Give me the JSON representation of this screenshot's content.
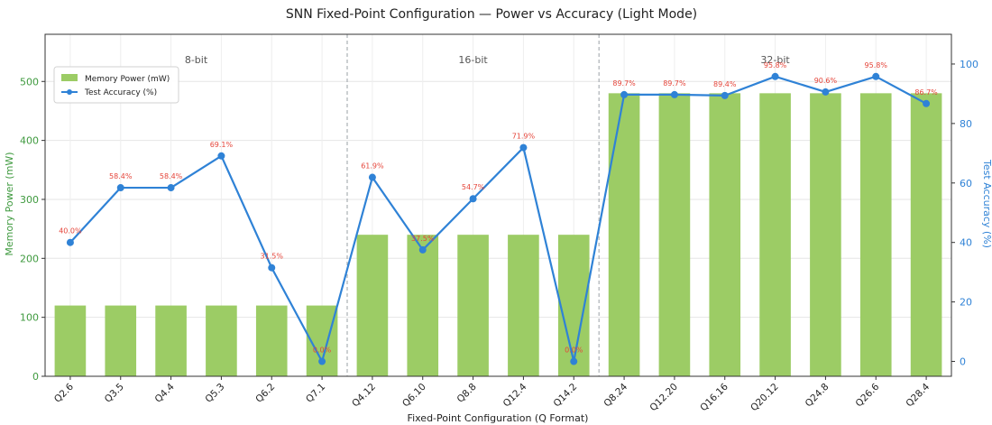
{
  "chart_data": {
    "type": "bar+line",
    "title": "SNN Fixed-Point Configuration — Power vs Accuracy (Light Mode)",
    "xlabel": "Fixed-Point Configuration (Q Format)",
    "ylabel_left": "Memory Power (mW)",
    "ylabel_right": "Test Accuracy (%)",
    "ylim_left": [
      0,
      580
    ],
    "ylim_right": [
      -5,
      110
    ],
    "yticks_left": [
      0,
      100,
      200,
      300,
      400,
      500
    ],
    "yticks_right": [
      0,
      20,
      40,
      60,
      80,
      100
    ],
    "grid": true,
    "legend_position": "upper-left",
    "categories": [
      "Q2.6",
      "Q3.5",
      "Q4.4",
      "Q5.3",
      "Q6.2",
      "Q7.1",
      "Q4.12",
      "Q6.10",
      "Q8.8",
      "Q12.4",
      "Q14.2",
      "Q8.24",
      "Q12.20",
      "Q16.16",
      "Q20.12",
      "Q24.8",
      "Q26.6",
      "Q28.4"
    ],
    "groups": [
      {
        "label": "8-bit",
        "start": 0,
        "end": 5
      },
      {
        "label": "16-bit",
        "start": 6,
        "end": 10
      },
      {
        "label": "32-bit",
        "start": 11,
        "end": 17
      }
    ],
    "series": [
      {
        "name": "Memory Power (mW)",
        "type": "bar",
        "axis": "left",
        "color": "#9ccc65",
        "values": [
          120,
          120,
          120,
          120,
          120,
          120,
          240,
          240,
          240,
          240,
          240,
          480,
          480,
          480,
          480,
          480,
          480,
          480
        ]
      },
      {
        "name": "Test Accuracy (%)",
        "type": "line",
        "axis": "right",
        "color": "#2f82d6",
        "values": [
          40.0,
          58.4,
          58.4,
          69.1,
          31.5,
          0.0,
          61.9,
          37.5,
          54.7,
          71.9,
          0.0,
          89.7,
          89.7,
          89.4,
          95.8,
          90.6,
          95.8,
          86.7
        ],
        "labels": [
          "40.0%",
          "58.4%",
          "58.4%",
          "69.1%",
          "31.5%",
          "0.0%",
          "61.9%",
          "37.5%",
          "54.7%",
          "71.9%",
          "0.0%",
          "89.7%",
          "89.7%",
          "89.4%",
          "95.8%",
          "90.6%",
          "95.8%",
          "86.7%"
        ]
      }
    ]
  },
  "colors": {
    "bar": "#9ccc65",
    "line": "#2f82d6",
    "label": "#e5453a",
    "left_axis": "#3f9a3f",
    "right_axis": "#2f82d6"
  }
}
